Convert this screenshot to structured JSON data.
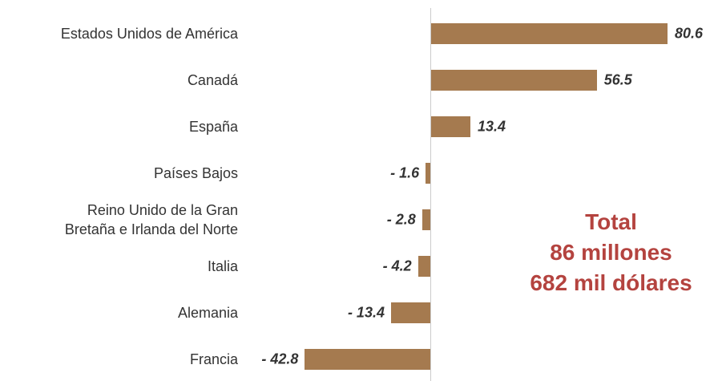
{
  "chart_data": {
    "type": "bar",
    "orientation": "horizontal",
    "categories": [
      "Estados Unidos de América",
      "Canadá",
      "España",
      "Países Bajos",
      "Reino Unido de la Gran\nBretaña e Irlanda del Norte",
      "Italia",
      "Alemania",
      "Francia"
    ],
    "values": [
      80.6,
      56.5,
      13.4,
      -1.6,
      -2.8,
      -4.2,
      -13.4,
      -42.8
    ],
    "value_labels": [
      "80.6",
      "56.5",
      "13.4",
      "- 1.6",
      "- 2.8",
      "- 4.2",
      "- 13.4",
      "- 42.8"
    ],
    "color": "#a57a4f",
    "annotation": "Total\n86 millones\n682 mil dólares",
    "annotation_color": "#b4433f"
  }
}
